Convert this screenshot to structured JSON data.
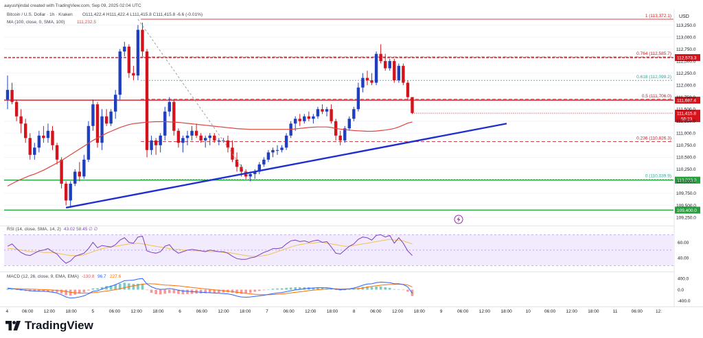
{
  "header": {
    "attribution": "aayushjindal created with TradingView.com, Sep 09, 2025 02:04 UTC",
    "symbol_line": "Bitcoin / U.S. Dollar · 1h · Kraken",
    "ohlc": "O111,422.4  H111,422.4  L111,415.8  C111,415.8  -6.6 (-0.01%)",
    "ma_label": "MA (100, close, 0, SMA, 100)",
    "ma_value": "111,232.5",
    "rsi_label": "RSI (14, close, SMA, 14, 2)",
    "rsi_values": "43.02  58.45  ∅  ∅",
    "macd_label": "MACD (12, 26, close, 9, EMA, EMA)",
    "macd_values": [
      "-130.8",
      "96.7",
      "227.6"
    ],
    "currency": "USD"
  },
  "colors": {
    "up": "#1f3fbf",
    "down": "#d4141c",
    "ma": "#e0433d",
    "trendline": "#1f2fcf",
    "fib": "#d4141c",
    "support": "#26a03c",
    "rsi_band": "#e9ddfb",
    "rsi_line": "#7b3fbf",
    "rsi_ma": "#f2c14e",
    "macd_line": "#2962ff",
    "macd_signal": "#ff6d00",
    "hist_pos": "#26a69a",
    "hist_neg": "#ef5350"
  },
  "chart_data": {
    "type": "candlestick",
    "title": "Bitcoin / U.S. Dollar · 1h · Kraken",
    "ylabel": "USD",
    "ylim": [
      109250,
      113250
    ],
    "y_ticks": [
      113250,
      113000,
      112750,
      112500,
      112250,
      112000,
      111750,
      111500,
      111250,
      111000,
      110750,
      110500,
      110250,
      110000,
      109750,
      109500,
      109250
    ],
    "y_tick_labels": [
      "113,250.0",
      "113,000.0",
      "112,750.0",
      "112,500.0",
      "112,250.0",
      "112,000.0",
      "111,750.0",
      "111,500.0",
      "111,250.0",
      "111,000.0",
      "110,750.0",
      "110,500.0",
      "110,250.0",
      "110,000.0",
      "109,750.0",
      "109,500.0",
      "109,250.0"
    ],
    "x_tick_labels": [
      "4",
      "06:00",
      "12:00",
      "18:00",
      "5",
      "06:00",
      "12:00",
      "18:00",
      "6",
      "06:00",
      "12:00",
      "18:00",
      "7",
      "06:00",
      "12:00",
      "18:00",
      "8",
      "06:00",
      "12:00",
      "18:00",
      "9",
      "06:00",
      "12:00",
      "18:00",
      "10",
      "06:00",
      "12:00",
      "18:00",
      "11",
      "06:00",
      "12:"
    ],
    "candles": [
      [
        111700,
        112200,
        111500,
        111900
      ],
      [
        111900,
        112050,
        111600,
        111650
      ],
      [
        111650,
        111700,
        111250,
        111350
      ],
      [
        111350,
        111500,
        111000,
        111200
      ],
      [
        111200,
        111300,
        110800,
        110900
      ],
      [
        110900,
        111000,
        110450,
        110550
      ],
      [
        110550,
        110800,
        110450,
        110700
      ],
      [
        110700,
        111050,
        110600,
        110950
      ],
      [
        110950,
        111150,
        110800,
        110900
      ],
      [
        110900,
        111200,
        110800,
        111050
      ],
      [
        111050,
        111150,
        110650,
        110750
      ],
      [
        110750,
        110800,
        110350,
        110450
      ],
      [
        110450,
        110500,
        109850,
        109950
      ],
      [
        109950,
        110000,
        109500,
        109600
      ],
      [
        109600,
        110000,
        109450,
        109950
      ],
      [
        109950,
        110250,
        109900,
        110200
      ],
      [
        110200,
        110400,
        110000,
        110100
      ],
      [
        110100,
        110550,
        110050,
        110450
      ],
      [
        110450,
        111250,
        110400,
        111150
      ],
      [
        111150,
        111700,
        111050,
        111600
      ],
      [
        111600,
        111650,
        110700,
        110800
      ],
      [
        110800,
        111500,
        110650,
        111350
      ],
      [
        111350,
        111500,
        111150,
        111200
      ],
      [
        111200,
        111500,
        111150,
        111450
      ],
      [
        111450,
        111900,
        111300,
        111800
      ],
      [
        111800,
        112750,
        111700,
        112700
      ],
      [
        112700,
        112900,
        112600,
        112800
      ],
      [
        112800,
        112850,
        112150,
        112250
      ],
      [
        112250,
        112400,
        112100,
        112200
      ],
      [
        112200,
        113250,
        112100,
        113150
      ],
      [
        113150,
        113300,
        112600,
        112700
      ],
      [
        112700,
        112750,
        110500,
        110650
      ],
      [
        110650,
        110950,
        110550,
        110850
      ],
      [
        110850,
        110900,
        110550,
        110750
      ],
      [
        110750,
        111000,
        110600,
        110950
      ],
      [
        110950,
        111550,
        110850,
        111450
      ],
      [
        111450,
        111750,
        111350,
        111650
      ],
      [
        111650,
        111700,
        110950,
        111050
      ],
      [
        111050,
        111100,
        110700,
        110800
      ],
      [
        110800,
        110950,
        110600,
        110900
      ],
      [
        110900,
        111050,
        110750,
        110950
      ],
      [
        110950,
        111150,
        110850,
        111050
      ],
      [
        111050,
        111200,
        110900,
        110950
      ],
      [
        110950,
        111000,
        110800,
        110850
      ],
      [
        110850,
        110950,
        110700,
        110900
      ],
      [
        110900,
        111000,
        110750,
        110950
      ],
      [
        110950,
        111000,
        110800,
        110850
      ],
      [
        110850,
        110900,
        110750,
        110850
      ],
      [
        110850,
        110900,
        110800,
        110850
      ],
      [
        110850,
        110950,
        110600,
        110700
      ],
      [
        110700,
        110850,
        110400,
        110450
      ],
      [
        110450,
        110600,
        110200,
        110300
      ],
      [
        110300,
        110350,
        110100,
        110200
      ],
      [
        110200,
        110250,
        110050,
        110100
      ],
      [
        110100,
        110200,
        110000,
        110150
      ],
      [
        110150,
        110250,
        110050,
        110200
      ],
      [
        110200,
        110400,
        110150,
        110350
      ],
      [
        110350,
        110500,
        110300,
        110450
      ],
      [
        110450,
        110650,
        110400,
        110600
      ],
      [
        110600,
        110700,
        110500,
        110650
      ],
      [
        110650,
        110750,
        110550,
        110650
      ],
      [
        110650,
        110750,
        110600,
        110700
      ],
      [
        110700,
        111000,
        110650,
        110950
      ],
      [
        110950,
        111250,
        110900,
        111200
      ],
      [
        111200,
        111350,
        111050,
        111300
      ],
      [
        111300,
        111400,
        111150,
        111250
      ],
      [
        111250,
        111400,
        111200,
        111350
      ],
      [
        111350,
        111450,
        111250,
        111300
      ],
      [
        111300,
        111400,
        111200,
        111350
      ],
      [
        111350,
        111550,
        111300,
        111500
      ],
      [
        111500,
        111600,
        111400,
        111450
      ],
      [
        111450,
        111550,
        111350,
        111500
      ],
      [
        111500,
        111600,
        111200,
        111250
      ],
      [
        111250,
        111300,
        110850,
        110950
      ],
      [
        110950,
        111050,
        110750,
        110850
      ],
      [
        110850,
        111150,
        110800,
        111100
      ],
      [
        111100,
        111350,
        111050,
        111300
      ],
      [
        111300,
        111550,
        111250,
        111500
      ],
      [
        111500,
        112050,
        111450,
        111950
      ],
      [
        111950,
        112250,
        111850,
        112150
      ],
      [
        112150,
        112300,
        112000,
        112100
      ],
      [
        112100,
        112250,
        112000,
        112050
      ],
      [
        112050,
        112700,
        112000,
        112650
      ],
      [
        112650,
        112850,
        112450,
        112500
      ],
      [
        112500,
        112650,
        112300,
        112350
      ],
      [
        112350,
        112550,
        112300,
        112500
      ],
      [
        112500,
        112550,
        112050,
        112100
      ],
      [
        112100,
        112450,
        112050,
        112400
      ],
      [
        112400,
        112450,
        112000,
        112050
      ],
      [
        112050,
        112100,
        111700,
        111750
      ],
      [
        111750,
        111750,
        111400,
        111420
      ]
    ],
    "ma": {
      "name": "MA (100, close, 0, SMA, 100)",
      "values": [
        109900,
        109950,
        110000,
        110040,
        110080,
        110120,
        110150,
        110190,
        110230,
        110280,
        110330,
        110380,
        110430,
        110490,
        110550,
        110610,
        110670,
        110730,
        110790,
        110850,
        110900,
        110950,
        111000,
        111040,
        111080,
        111120,
        111150,
        111180,
        111200,
        111210,
        111220,
        111230,
        111235,
        111240,
        111240,
        111240,
        111235,
        111230,
        111225,
        111215,
        111205,
        111195,
        111185,
        111175,
        111165,
        111155,
        111145,
        111135,
        111125,
        111115,
        111105,
        111095,
        111090,
        111085,
        111080,
        111080,
        111080,
        111080,
        111080,
        111080,
        111080,
        111080,
        111080,
        111080,
        111090,
        111100,
        111110,
        111120,
        111125,
        111130,
        111130,
        111130,
        111120,
        111100,
        111085,
        111075,
        111065,
        111055,
        111050,
        111045,
        111040,
        111040,
        111045,
        111055,
        111065,
        111080,
        111100,
        111130,
        111170,
        111210,
        111232
      ]
    },
    "trendline": {
      "from": [
        13,
        109450
      ],
      "to": [
        111,
        111200
      ]
    },
    "levels": [
      {
        "label": "1 (113,372.1)",
        "value": 113372.1,
        "style": "fib"
      },
      {
        "label": "0.764 (112,585.7)",
        "value": 112585.7,
        "style": "fib-dash"
      },
      {
        "label": "0.618 (112,099.2)",
        "value": 112099.2,
        "style": "fib-dot"
      },
      {
        "label": "0.5 (111,706.0)",
        "value": 111706.0,
        "style": "fib-dash"
      },
      {
        "label": "0.236 (110,826.3)",
        "value": 110826.3,
        "style": "fib-dash"
      },
      {
        "label": "0 (110,039.9)",
        "value": 110039.9,
        "style": "fib-dot"
      }
    ],
    "hlines": [
      {
        "value": 112573.3,
        "label": "112,573.3",
        "color": "down"
      },
      {
        "value": 111687.4,
        "label": "111,687.4",
        "color": "down"
      },
      {
        "value": 110023.8,
        "label": "110,023.8",
        "color": "support"
      },
      {
        "value": 109400.0,
        "label": "109,400.0",
        "color": "support"
      }
    ],
    "price_tag": {
      "value": 111415.8,
      "label": "111,415.8",
      "countdown": "55:23"
    },
    "rsi": {
      "ylim": [
        25,
        80
      ],
      "band": [
        30,
        70
      ],
      "ticks": [
        60,
        40
      ],
      "values": [
        55,
        58,
        52,
        47,
        44,
        43,
        46,
        49,
        50,
        52,
        48,
        45,
        38,
        33,
        36,
        42,
        44,
        46,
        52,
        60,
        53,
        56,
        55,
        54,
        57,
        63,
        66,
        60,
        59,
        67,
        68,
        49,
        47,
        46,
        48,
        55,
        57,
        50,
        46,
        48,
        50,
        51,
        50,
        49,
        48,
        50,
        49,
        48,
        48,
        46,
        42,
        39,
        38,
        38,
        40,
        41,
        44,
        47,
        49,
        52,
        52,
        53,
        58,
        62,
        63,
        61,
        62,
        60,
        62,
        63,
        60,
        61,
        54,
        46,
        45,
        50,
        55,
        58,
        64,
        67,
        66,
        63,
        69,
        70,
        67,
        69,
        59,
        66,
        59,
        49,
        43
      ],
      "ma_values": [
        52,
        52,
        51,
        50,
        49,
        48,
        48,
        48,
        47,
        47,
        47,
        46,
        45,
        44,
        43,
        43,
        43,
        44,
        46,
        48,
        50,
        52,
        53,
        54,
        55,
        56,
        57,
        58,
        58,
        59,
        58,
        57,
        56,
        55,
        54,
        53,
        52,
        51,
        51,
        50,
        50,
        49,
        49,
        49,
        49,
        48,
        48,
        48,
        47,
        47,
        46,
        45,
        44,
        43,
        42,
        42,
        42,
        43,
        44,
        46,
        48,
        50,
        52,
        54,
        56,
        57,
        58,
        59,
        59,
        60,
        60,
        59,
        58,
        57,
        56,
        55,
        55,
        56,
        57,
        58,
        59,
        60,
        61,
        62,
        63,
        64,
        63,
        63,
        62,
        60,
        58
      ]
    },
    "macd": {
      "ylim": [
        -600,
        600
      ],
      "ticks": [
        400,
        0,
        -400
      ],
      "tick_labels": [
        "400.0",
        "0.0",
        "-400.0"
      ],
      "macd_values": [
        60,
        40,
        20,
        0,
        -20,
        -40,
        -50,
        -60,
        -60,
        -70,
        -90,
        -120,
        -180,
        -260,
        -300,
        -290,
        -260,
        -220,
        -150,
        -60,
        -40,
        20,
        80,
        120,
        180,
        250,
        320,
        330,
        340,
        380,
        400,
        200,
        100,
        40,
        10,
        20,
        40,
        20,
        -20,
        -50,
        -60,
        -70,
        -80,
        -90,
        -100,
        -110,
        -120,
        -130,
        -140,
        -150,
        -180,
        -230,
        -260,
        -270,
        -260,
        -240,
        -220,
        -200,
        -170,
        -140,
        -120,
        -100,
        -70,
        -40,
        -10,
        10,
        30,
        50,
        60,
        70,
        70,
        70,
        50,
        20,
        0,
        10,
        30,
        60,
        100,
        160,
        200,
        210,
        250,
        270,
        260,
        250,
        210,
        210,
        180,
        100,
        -130
      ],
      "signal_values": [
        30,
        32,
        32,
        30,
        26,
        20,
        14,
        8,
        2,
        -4,
        -12,
        -24,
        -40,
        -64,
        -90,
        -110,
        -120,
        -124,
        -120,
        -108,
        -94,
        -72,
        -50,
        -26,
        2,
        34,
        72,
        106,
        136,
        166,
        196,
        210,
        210,
        200,
        180,
        166,
        160,
        148,
        134,
        116,
        98,
        80,
        62,
        45,
        28,
        12,
        -4,
        -20,
        -36,
        -52,
        -70,
        -90,
        -110,
        -130,
        -150,
        -165,
        -175,
        -180,
        -180,
        -175,
        -165,
        -150,
        -135,
        -115,
        -95,
        -75,
        -55,
        -35,
        -18,
        -2,
        12,
        24,
        30,
        30,
        28,
        26,
        26,
        30,
        40,
        60,
        90,
        115,
        140,
        160,
        175,
        185,
        190,
        195,
        190,
        170,
        96
      ]
    }
  },
  "footer": {
    "brand": "TradingView"
  }
}
